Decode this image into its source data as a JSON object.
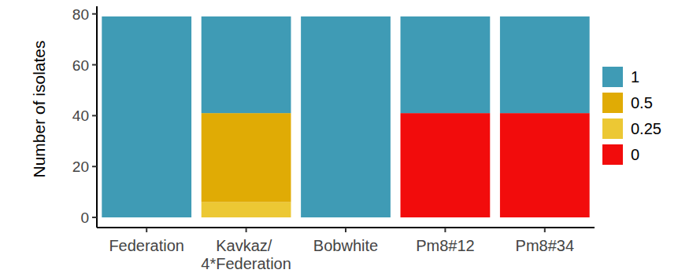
{
  "chart_data": {
    "type": "bar",
    "stacked": true,
    "y_label": "Number of isolates",
    "categories": [
      "Federation",
      "Kavkaz/ 4*Federation",
      "Bobwhite",
      "Pm8#12",
      "Pm8#34"
    ],
    "series": [
      {
        "name": "1",
        "color": "#3f9bb5",
        "values": [
          79,
          38,
          79,
          38,
          38
        ]
      },
      {
        "name": "0.5",
        "color": "#e0ab05",
        "values": [
          0,
          35,
          0,
          0,
          0
        ]
      },
      {
        "name": "0.25",
        "color": "#ecc834",
        "values": [
          0,
          6,
          0,
          0,
          0
        ]
      },
      {
        "name": "0",
        "color": "#f20c0c",
        "values": [
          0,
          0,
          0,
          41,
          41
        ]
      }
    ],
    "ylim": [
      -4,
      83
    ],
    "yticks": [
      0,
      20,
      40,
      60,
      80
    ],
    "grid": false,
    "legend": "right"
  }
}
